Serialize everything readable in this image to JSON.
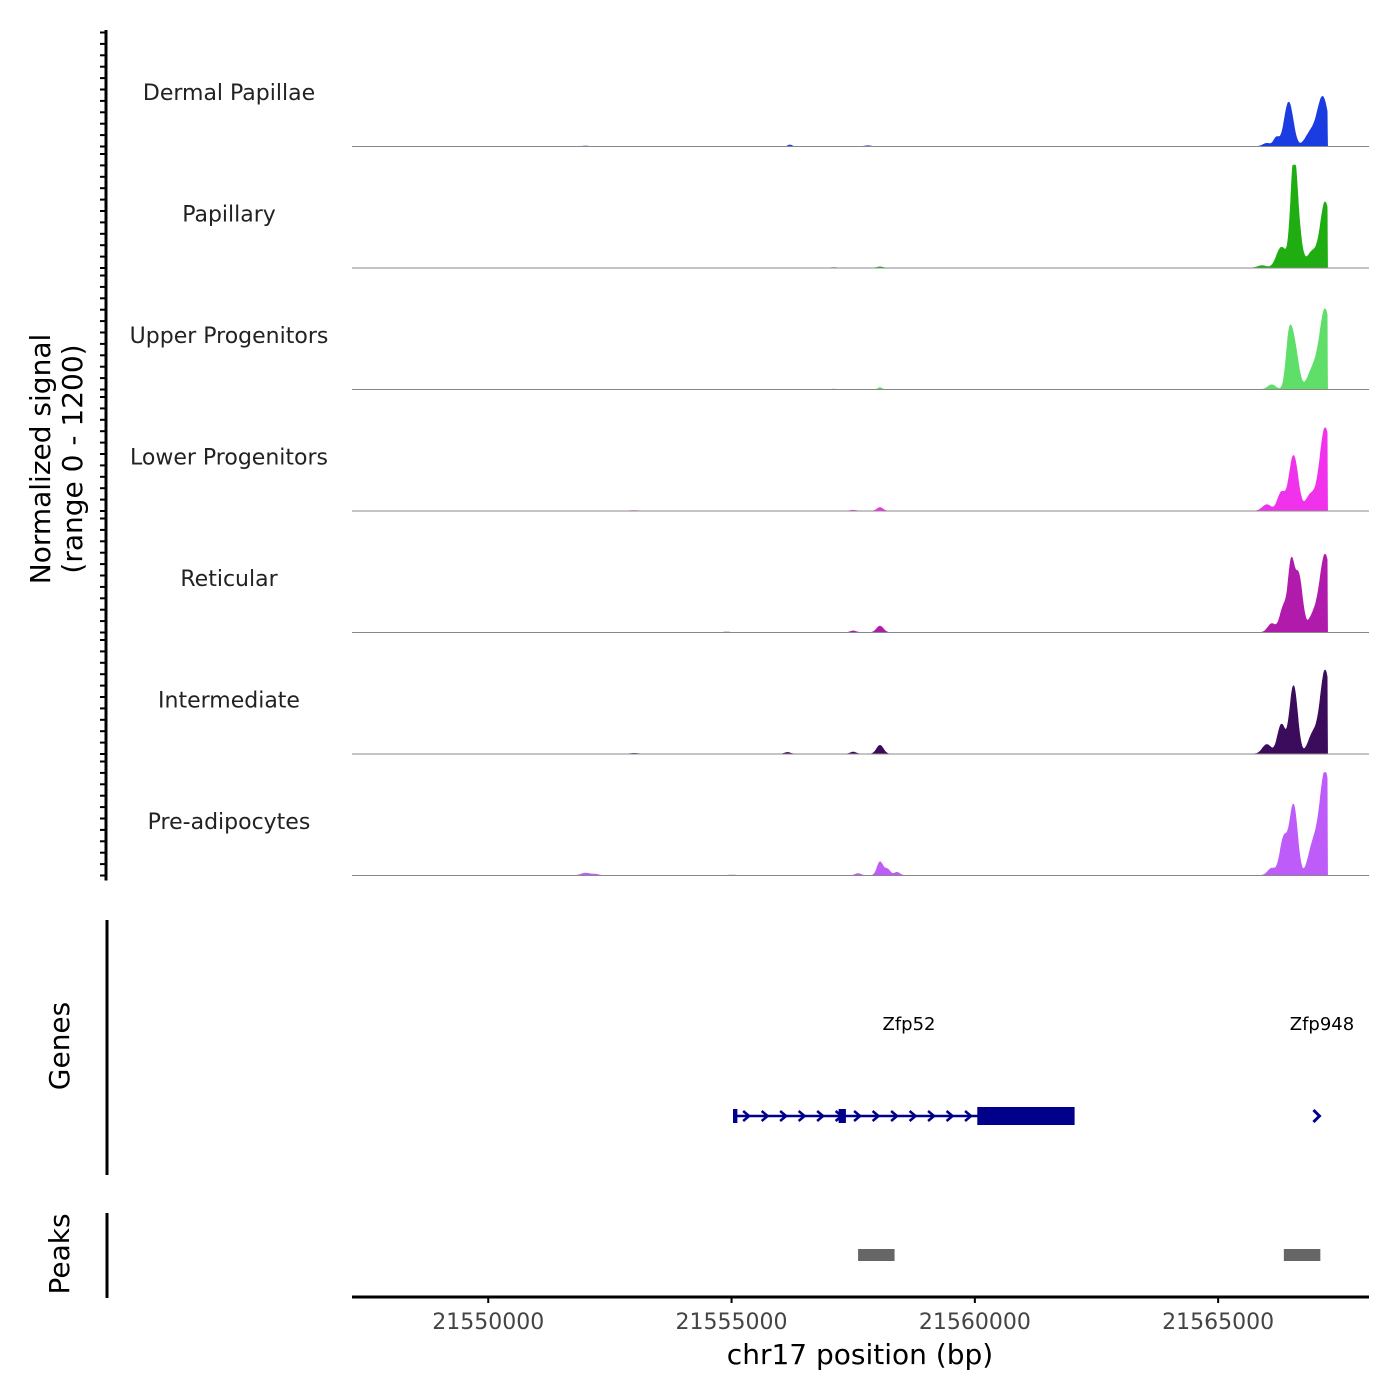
{
  "chart_data": {
    "type": "area",
    "title": "",
    "ylabel": "Normalized signal",
    "ylabel_range": "(range 0 - 1200)",
    "ylim": [
      0,
      1200
    ],
    "xlabel": "chr17 position (bp)",
    "xlim": [
      21547200,
      21568100
    ],
    "x_ticks": [
      21550000,
      21555000,
      21560000,
      21565000
    ],
    "x_tick_labels": [
      "21550000",
      "21555000",
      "21560000",
      "21565000"
    ],
    "tracks": [
      {
        "name": "Dermal Papillae",
        "color": "#1a3ce0",
        "small_peaks": [
          [
            21556200,
            20,
            40
          ],
          [
            21557800,
            10,
            60
          ],
          [
            21552000,
            6,
            60
          ]
        ],
        "main_peaks": [
          [
            21566000,
            40,
            80
          ],
          [
            21566200,
            110,
            60
          ],
          [
            21566450,
            560,
            90
          ],
          [
            21566900,
            170,
            110
          ],
          [
            21567150,
            620,
            110
          ]
        ]
      },
      {
        "name": "Papillary",
        "color": "#1fad12",
        "small_peaks": [
          [
            21558050,
            15,
            60
          ],
          [
            21557100,
            6,
            60
          ]
        ],
        "main_peaks": [
          [
            21565900,
            30,
            90
          ],
          [
            21566300,
            260,
            100
          ],
          [
            21566550,
            800,
            60
          ],
          [
            21566600,
            700,
            90
          ],
          [
            21566930,
            200,
            100
          ],
          [
            21567200,
            830,
            100
          ]
        ]
      },
      {
        "name": "Upper Progenitors",
        "color": "#5fdf6a",
        "small_peaks": [
          [
            21558050,
            25,
            40
          ],
          [
            21557100,
            5,
            60
          ]
        ],
        "main_peaks": [
          [
            21566100,
            60,
            80
          ],
          [
            21566450,
            420,
            60
          ],
          [
            21566550,
            600,
            90
          ],
          [
            21566950,
            250,
            110
          ],
          [
            21567200,
            1000,
            110
          ]
        ]
      },
      {
        "name": "Lower Progenitors",
        "color": "#f032ed",
        "small_peaks": [
          [
            21558050,
            45,
            60
          ],
          [
            21557500,
            10,
            60
          ],
          [
            21553000,
            6,
            80
          ]
        ],
        "main_peaks": [
          [
            21566000,
            80,
            90
          ],
          [
            21566300,
            230,
            80
          ],
          [
            21566550,
            700,
            90
          ],
          [
            21566900,
            200,
            100
          ],
          [
            21567200,
            1050,
            110
          ]
        ]
      },
      {
        "name": "Reticular",
        "color": "#b11bac",
        "small_peaks": [
          [
            21558050,
            80,
            70
          ],
          [
            21557500,
            20,
            60
          ],
          [
            21554900,
            6,
            70
          ]
        ],
        "main_peaks": [
          [
            21566100,
            110,
            80
          ],
          [
            21566350,
            330,
            80
          ],
          [
            21566500,
            760,
            60
          ],
          [
            21566650,
            730,
            80
          ],
          [
            21566950,
            200,
            100
          ],
          [
            21567200,
            980,
            110
          ]
        ]
      },
      {
        "name": "Intermediate",
        "color": "#3b0b5c",
        "small_peaks": [
          [
            21558050,
            110,
            70
          ],
          [
            21557500,
            25,
            60
          ],
          [
            21556150,
            20,
            60
          ],
          [
            21553000,
            8,
            80
          ]
        ],
        "main_peaks": [
          [
            21566000,
            120,
            90
          ],
          [
            21566300,
            370,
            80
          ],
          [
            21566550,
            860,
            80
          ],
          [
            21566950,
            250,
            100
          ],
          [
            21567200,
            1050,
            100
          ]
        ]
      },
      {
        "name": "Pre-adipocytes",
        "color": "#bd5cf8",
        "small_peaks": [
          [
            21552000,
            30,
            90
          ],
          [
            21552200,
            15,
            70
          ],
          [
            21557600,
            25,
            60
          ],
          [
            21558050,
            170,
            60
          ],
          [
            21558200,
            80,
            60
          ],
          [
            21558400,
            40,
            60
          ],
          [
            21555000,
            6,
            80
          ]
        ],
        "main_peaks": [
          [
            21566100,
            90,
            80
          ],
          [
            21566350,
            470,
            80
          ],
          [
            21566550,
            880,
            80
          ],
          [
            21566950,
            370,
            100
          ],
          [
            21567200,
            1310,
            110
          ]
        ]
      }
    ],
    "genes_track_label": "Genes",
    "genes": [
      {
        "name": "Zfp52",
        "start": 21555050,
        "end": 21562000,
        "strand": "+",
        "color": "#00008b",
        "exons": [
          [
            21555030,
            21555120
          ],
          [
            21557200,
            21557350
          ],
          [
            21560050,
            21562050
          ]
        ]
      },
      {
        "name": "Zfp948",
        "start": 21567020,
        "end": 21567020,
        "strand": "+",
        "color": "#00008b",
        "exons": []
      }
    ],
    "peaks_track_label": "Peaks",
    "peaks": [
      [
        21557600,
        21558350
      ],
      [
        21566350,
        21567100
      ]
    ],
    "peak_color": "#666666"
  }
}
